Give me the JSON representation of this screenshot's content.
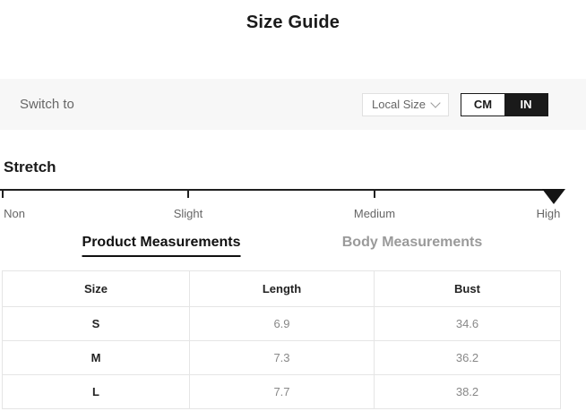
{
  "page": {
    "title": "Size Guide"
  },
  "switch_bar": {
    "label": "Switch to",
    "local_size": {
      "selected_value": "Local Size"
    },
    "unit_toggle": {
      "options": [
        {
          "label": "CM",
          "selected": false
        },
        {
          "label": "IN",
          "selected": true
        }
      ]
    }
  },
  "stretch": {
    "title": "Stretch",
    "levels": [
      "Non",
      "Slight",
      "Medium",
      "High"
    ],
    "selected_level": "High"
  },
  "tabs": [
    {
      "label": "Product Measurements",
      "active": true
    },
    {
      "label": "Body Measurements",
      "active": false
    }
  ],
  "measurements_table": {
    "columns": [
      "Size",
      "Length",
      "Bust"
    ],
    "rows": [
      [
        "S",
        "6.9",
        "34.6"
      ],
      [
        "M",
        "7.3",
        "36.2"
      ],
      [
        "L",
        "7.7",
        "38.2"
      ]
    ],
    "unit": "IN"
  },
  "colors": {
    "accent": "#1a1a1a",
    "bar_background": "#f7f7f7",
    "border": "#e5e5e5",
    "muted_text": "#666666",
    "value_text": "#888888"
  }
}
